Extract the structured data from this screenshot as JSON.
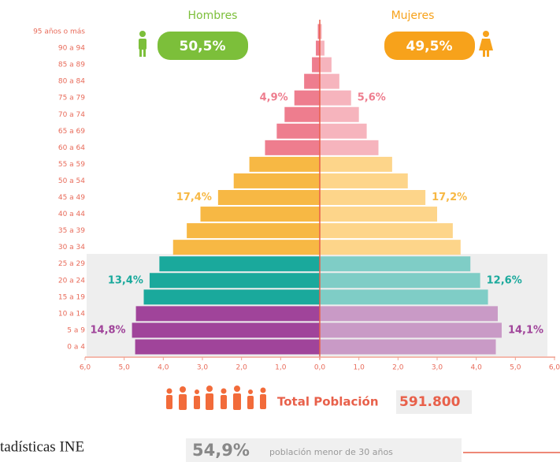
{
  "chart_data": {
    "type": "pyramid",
    "categories": [
      "95 años o más",
      "90 a 94",
      "85 a 89",
      "80 a 84",
      "75 a 79",
      "70 a 74",
      "65 a 69",
      "60 a 64",
      "55 a 59",
      "50 a 54",
      "45 a 49",
      "40 a 44",
      "35 a 39",
      "30 a 34",
      "25 a 29",
      "20 a 24",
      "15 a 19",
      "10 a 14",
      "5 a 9",
      "0 a 4"
    ],
    "series": [
      {
        "name": "Hombres",
        "share": "50,5%",
        "badge_color": "#7cbf3a",
        "values": [
          0.05,
          0.1,
          0.2,
          0.4,
          0.65,
          0.9,
          1.1,
          1.4,
          1.8,
          2.2,
          2.6,
          3.05,
          3.4,
          3.75,
          4.1,
          4.35,
          4.5,
          4.7,
          4.8,
          4.72
        ],
        "colors": [
          "#ee7d8e",
          "#ee7d8e",
          "#ee7d8e",
          "#ee7d8e",
          "#ee7d8e",
          "#ee7d8e",
          "#ee7d8e",
          "#ee7d8e",
          "#f7b844",
          "#f7b844",
          "#f7b844",
          "#f7b844",
          "#f7b844",
          "#f7b844",
          "#1aa99c",
          "#1aa99c",
          "#1aa99c",
          "#a0449a",
          "#a0449a",
          "#a0449a"
        ],
        "group_labels": [
          "4,9%",
          "17,4%",
          "13,4%",
          "14,8%"
        ]
      },
      {
        "name": "Mujeres",
        "share": "49,5%",
        "badge_color": "#f7a21b",
        "values": [
          0.05,
          0.12,
          0.3,
          0.5,
          0.8,
          1.0,
          1.2,
          1.5,
          1.85,
          2.25,
          2.7,
          3.0,
          3.4,
          3.6,
          3.85,
          4.1,
          4.3,
          4.55,
          4.65,
          4.5
        ],
        "colors": [
          "#f6b4bd",
          "#f6b4bd",
          "#f6b4bd",
          "#f6b4bd",
          "#f6b4bd",
          "#f6b4bd",
          "#f6b4bd",
          "#f6b4bd",
          "#fdd58a",
          "#fdd58a",
          "#fdd58a",
          "#fdd58a",
          "#fdd58a",
          "#fdd58a",
          "#7fcdc6",
          "#7fcdc6",
          "#7fcdc6",
          "#c99ac6",
          "#c99ac6",
          "#c99ac6"
        ],
        "group_labels": [
          "5,6%",
          "17,2%",
          "12,6%",
          "14,1%"
        ]
      }
    ],
    "group_colors": [
      "#ee7d8e",
      "#f7b844",
      "#1aa99c",
      "#a0449a"
    ],
    "xlim": [
      0,
      6
    ],
    "xticks": [
      {
        "value": 0,
        "label": "0,0"
      },
      {
        "value": 1,
        "label": "1,0"
      },
      {
        "value": 2,
        "label": "2,0"
      },
      {
        "value": 3,
        "label": "3,0"
      },
      {
        "value": 4,
        "label": "4,0"
      },
      {
        "value": 5,
        "label": "5,0"
      },
      {
        "value": 6,
        "label": "6,0"
      }
    ],
    "total_label": "Total Población",
    "total_value": "591.800",
    "young_share": "54,9%",
    "young_label": "población menor de 30 años",
    "source": "tadísticas INE"
  }
}
